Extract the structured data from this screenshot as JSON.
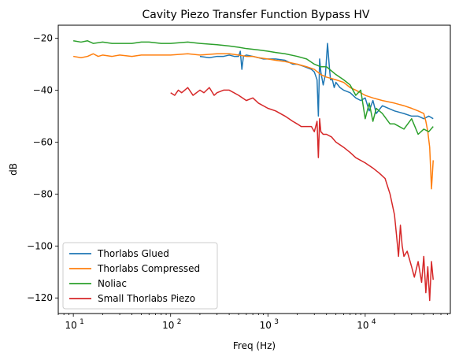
{
  "chart_data": {
    "type": "line",
    "title": "Cavity Piezo Transfer Function Bypass HV",
    "xlabel": "Freq (Hz)",
    "ylabel": "dB",
    "xscale": "log",
    "xlim": [
      7,
      75000
    ],
    "ylim": [
      -126,
      -15
    ],
    "x_ticks": [
      {
        "value": 10,
        "base": "10",
        "exp": "1"
      },
      {
        "value": 100,
        "base": "10",
        "exp": "2"
      },
      {
        "value": 1000,
        "base": "10",
        "exp": "3"
      },
      {
        "value": 10000,
        "base": "10",
        "exp": "4"
      }
    ],
    "y_ticks": [
      -20,
      -40,
      -60,
      -80,
      -100,
      -120
    ],
    "grid": false,
    "legend_position": "lower-left",
    "series": [
      {
        "name": "Thorlabs Glued",
        "color": "#1f77b4",
        "x": [
          200,
          250,
          300,
          350,
          400,
          450,
          500,
          520,
          540,
          560,
          600,
          700,
          800,
          900,
          1000,
          1200,
          1500,
          1800,
          2000,
          2400,
          2800,
          3000,
          3200,
          3300,
          3400,
          3500,
          3700,
          3900,
          4100,
          4300,
          4400,
          4600,
          4800,
          5000,
          5500,
          6000,
          7000,
          8000,
          9000,
          10000,
          11000,
          12000,
          13000,
          15000,
          20000,
          25000,
          30000,
          35000,
          40000,
          45000,
          50000
        ],
        "y": [
          -27,
          -27.5,
          -27,
          -27,
          -26.5,
          -27,
          -27,
          -25,
          -32,
          -27,
          -26.5,
          -27,
          -27.5,
          -28,
          -28,
          -28,
          -28.5,
          -30,
          -30,
          -31,
          -32,
          -33,
          -36,
          -50,
          -28,
          -33,
          -38,
          -34,
          -22,
          -32,
          -36,
          -36,
          -39,
          -37,
          -39,
          -40,
          -41,
          -43,
          -44,
          -43,
          -48,
          -44,
          -49,
          -46,
          -48,
          -49,
          -50,
          -50,
          -51,
          -50,
          -51
        ]
      },
      {
        "name": "Thorlabs Compressed",
        "color": "#ff7f0e",
        "x": [
          10,
          12,
          14,
          16,
          18,
          20,
          25,
          30,
          40,
          50,
          60,
          80,
          100,
          150,
          200,
          300,
          400,
          500,
          600,
          700,
          800,
          1000,
          1200,
          1500,
          2000,
          2500,
          3000,
          3500,
          4000,
          5000,
          6000,
          7000,
          8000,
          10000,
          12000,
          15000,
          20000,
          25000,
          30000,
          35000,
          40000,
          42000,
          44000,
          46000,
          48000,
          50000
        ],
        "y": [
          -27,
          -27.5,
          -27,
          -26,
          -27,
          -26.5,
          -27,
          -26.5,
          -27,
          -26.5,
          -26.5,
          -26.5,
          -26.5,
          -26,
          -26.5,
          -26,
          -26,
          -26.5,
          -27,
          -27,
          -27.5,
          -28,
          -28.5,
          -29,
          -30,
          -31,
          -32,
          -34,
          -35,
          -36,
          -37,
          -39,
          -40,
          -42,
          -43,
          -44,
          -45,
          -46,
          -47,
          -48,
          -49,
          -52,
          -56,
          -62,
          -78,
          -67
        ]
      },
      {
        "name": "Noliac",
        "color": "#2ca02c",
        "x": [
          10,
          12,
          14,
          16,
          20,
          25,
          30,
          40,
          50,
          60,
          80,
          100,
          150,
          200,
          300,
          400,
          500,
          600,
          800,
          1000,
          1200,
          1500,
          2000,
          2500,
          3000,
          3500,
          4000,
          5000,
          6000,
          7000,
          8000,
          9000,
          10000,
          11000,
          12000,
          13000,
          15000,
          18000,
          20000,
          25000,
          30000,
          35000,
          40000,
          45000,
          50000
        ],
        "y": [
          -21,
          -21.5,
          -21,
          -22,
          -21.5,
          -22,
          -22,
          -22,
          -21.5,
          -21.5,
          -22,
          -22,
          -21.5,
          -22,
          -22.5,
          -23,
          -23.5,
          -24,
          -24.5,
          -25,
          -25.5,
          -26,
          -27,
          -28,
          -30,
          -31,
          -31,
          -34,
          -36,
          -38,
          -42,
          -40,
          -51,
          -45,
          -52,
          -47,
          -49,
          -53,
          -53,
          -55,
          -51,
          -57,
          -55,
          -56,
          -54
        ]
      },
      {
        "name": "Small Thorlabs Piezo",
        "color": "#d62728",
        "x": [
          100,
          110,
          120,
          130,
          150,
          170,
          200,
          220,
          250,
          280,
          300,
          350,
          400,
          500,
          600,
          700,
          800,
          1000,
          1200,
          1500,
          1800,
          2000,
          2200,
          2500,
          2800,
          3000,
          3200,
          3300,
          3400,
          3500,
          3700,
          4000,
          4500,
          5000,
          6000,
          7000,
          8000,
          10000,
          12000,
          14000,
          16000,
          18000,
          20000,
          21000,
          22000,
          23000,
          24000,
          25000,
          27000,
          30000,
          32000,
          35000,
          38000,
          40000,
          42000,
          44000,
          46000,
          48000,
          50000
        ],
        "y": [
          -41,
          -42,
          -40,
          -41,
          -39,
          -42,
          -40,
          -41,
          -39,
          -42,
          -41,
          -40,
          -40,
          -42,
          -44,
          -43,
          -45,
          -47,
          -48,
          -50,
          -52,
          -53,
          -54,
          -54,
          -54,
          -56,
          -52,
          -66,
          -51,
          -56,
          -57,
          -57,
          -58,
          -60,
          -62,
          -64,
          -66,
          -68,
          -70,
          -72,
          -74,
          -80,
          -88,
          -96,
          -104,
          -92,
          -100,
          -104,
          -102,
          -108,
          -112,
          -106,
          -114,
          -104,
          -118,
          -108,
          -121,
          -106,
          -113
        ]
      }
    ]
  }
}
